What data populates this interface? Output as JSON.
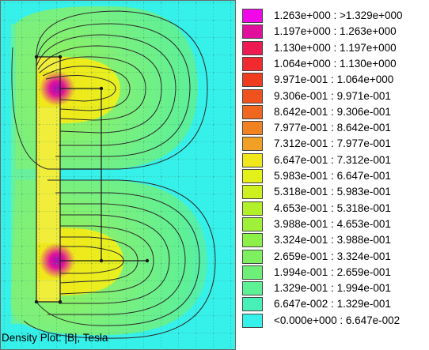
{
  "plot": {
    "background": "#36f0ea",
    "field_color": "#7ef07a",
    "core_color": "#f1ee3b",
    "hot_color": "#a30cb5"
  },
  "legend": {
    "items": [
      {
        "label": "1.263e+000 : >1.329e+000",
        "color": "#f008e8"
      },
      {
        "label": "1.197e+000 : 1.263e+000",
        "color": "#e0109c"
      },
      {
        "label": "1.130e+000 : 1.197e+000",
        "color": "#ee1a52"
      },
      {
        "label": "1.064e+000 : 1.130e+000",
        "color": "#f02a2e"
      },
      {
        "label": "9.971e-001 : 1.064e+000",
        "color": "#f03c1e"
      },
      {
        "label": "9.306e-001 : 9.971e-001",
        "color": "#f0521e"
      },
      {
        "label": "8.642e-001 : 9.306e-001",
        "color": "#f06820"
      },
      {
        "label": "7.977e-001 : 8.642e-001",
        "color": "#f08222"
      },
      {
        "label": "7.312e-001 : 7.977e-001",
        "color": "#f0a024"
      },
      {
        "label": "6.647e-001 : 7.312e-001",
        "color": "#f0e81a"
      },
      {
        "label": "5.983e-001 : 6.647e-001",
        "color": "#e4f01a"
      },
      {
        "label": "5.318e-001 : 5.983e-001",
        "color": "#cef020"
      },
      {
        "label": "4.653e-001 : 5.318e-001",
        "color": "#b2f02a"
      },
      {
        "label": "3.988e-001 : 4.653e-001",
        "color": "#9ef038"
      },
      {
        "label": "3.324e-001 : 3.988e-001",
        "color": "#8cf048"
      },
      {
        "label": "2.659e-001 : 3.324e-001",
        "color": "#7ef060"
      },
      {
        "label": "1.994e-001 : 2.659e-001",
        "color": "#6ef078"
      },
      {
        "label": "1.329e-001 : 1.994e-001",
        "color": "#5ef094"
      },
      {
        "label": "6.647e-002 : 1.329e-001",
        "color": "#46f0b6"
      },
      {
        "label": "<0.000e+000 : 6.647e-002",
        "color": "#36f0ea"
      }
    ]
  },
  "caption": "Density Plot: |B|, Tesla"
}
